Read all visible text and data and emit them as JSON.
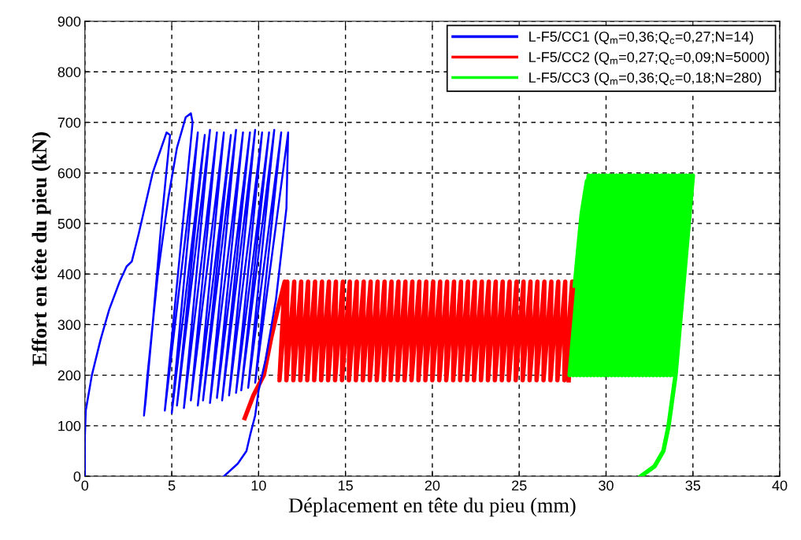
{
  "chart_data": {
    "type": "line",
    "xlabel": "Déplacement en tête du pieu (mm)",
    "ylabel": "Effort en tête du pieu (kN)",
    "xlim": [
      0,
      40
    ],
    "xticks": [
      0,
      5,
      10,
      15,
      20,
      25,
      30,
      35,
      40
    ],
    "ylim": [
      0,
      900
    ],
    "yticks": [
      0,
      100,
      200,
      300,
      400,
      500,
      600,
      700,
      800,
      900
    ],
    "grid": true,
    "legend": "top right",
    "line_style": "solid",
    "marker": "none",
    "series": [
      {
        "name": "L-F5/CC1 (Q$_{m}$=0,36;Q$_{c}$=0,27;N=14)",
        "color": "#0000ff",
        "x": [
          0,
          0,
          0.05,
          0.4,
          0.9,
          1.4,
          2.0,
          2.4,
          2.7,
          3.1,
          3.5,
          3.9,
          4.3,
          4.7,
          4.9,
          4.4,
          3.9,
          3.5,
          3.4,
          3.6,
          4.2,
          4.8,
          5.3,
          5.8,
          6.1,
          6.2,
          4.6,
          6.5,
          5.0,
          6.9,
          5.3,
          7.2,
          5.7,
          7.6,
          6.1,
          8.0,
          6.5,
          8.4,
          6.8,
          8.7,
          7.2,
          9.1,
          7.6,
          9.5,
          7.9,
          9.8,
          8.3,
          10.2,
          8.7,
          10.6,
          9.0,
          10.9,
          9.4,
          11.3,
          9.8,
          11.7,
          11.6,
          11.0,
          10.4,
          10.0,
          9.8,
          9.5,
          9.3,
          8.8,
          8.0
        ],
        "values": [
          0,
          80,
          130,
          200,
          270,
          330,
          385,
          415,
          425,
          480,
          540,
          600,
          640,
          680,
          675,
          500,
          300,
          150,
          120,
          200,
          400,
          550,
          650,
          710,
          718,
          700,
          130,
          680,
          125,
          675,
          140,
          685,
          135,
          680,
          150,
          680,
          140,
          675,
          150,
          685,
          145,
          680,
          155,
          680,
          150,
          685,
          160,
          680,
          165,
          680,
          170,
          685,
          175,
          680,
          185,
          680,
          530,
          350,
          230,
          170,
          120,
          80,
          50,
          25,
          0
        ]
      },
      {
        "name": "L-F5/CC2 (Q$_{m}$=0,27;Q$_{c}$=0,09;N=5000)",
        "color": "#ff0000",
        "x": [
          9.2,
          9.7,
          10.3,
          10.7,
          11.1,
          11.5,
          11.2,
          11.65,
          11.6,
          12.05,
          12.0,
          12.45,
          12.4,
          12.85,
          12.8,
          13.25,
          13.2,
          13.65,
          13.6,
          14.05,
          14.0,
          14.45,
          14.4,
          14.85,
          14.8,
          15.25,
          15.2,
          15.65,
          15.6,
          16.05,
          16.0,
          16.45,
          16.4,
          16.85,
          16.8,
          17.25,
          17.2,
          17.65,
          17.6,
          18.05,
          18.0,
          18.45,
          18.4,
          18.85,
          18.8,
          19.25,
          19.2,
          19.65,
          19.6,
          20.05,
          20.0,
          20.45,
          20.4,
          20.85,
          20.8,
          21.25,
          21.2,
          21.65,
          21.6,
          22.05,
          22.0,
          22.45,
          22.4,
          22.85,
          22.8,
          23.25,
          23.2,
          23.65,
          23.6,
          24.05,
          24.0,
          24.45,
          24.4,
          24.85,
          24.8,
          25.25,
          25.2,
          25.65,
          25.6,
          26.05,
          26.0,
          26.45,
          26.4,
          26.85,
          26.8,
          27.25,
          27.2,
          27.65,
          27.6,
          28.05,
          28.2,
          27.85
        ],
        "values": [
          115,
          160,
          200,
          270,
          330,
          385,
          190,
          385,
          190,
          385,
          190,
          385,
          190,
          385,
          190,
          385,
          190,
          385,
          190,
          385,
          190,
          385,
          190,
          385,
          190,
          385,
          190,
          385,
          190,
          385,
          190,
          385,
          190,
          385,
          190,
          385,
          190,
          385,
          190,
          385,
          190,
          385,
          190,
          385,
          190,
          385,
          190,
          385,
          190,
          385,
          190,
          385,
          190,
          385,
          190,
          385,
          190,
          385,
          190,
          385,
          190,
          385,
          190,
          385,
          190,
          385,
          190,
          385,
          190,
          385,
          190,
          385,
          190,
          385,
          190,
          385,
          190,
          385,
          190,
          385,
          190,
          385,
          190,
          385,
          190,
          385,
          190,
          385,
          190,
          385,
          385,
          190
        ]
      },
      {
        "name": "L-F5/CC3 (Q$_{m}$=0,36;Q$_{c}$=0,18;N=280)",
        "color": "#00ff00",
        "x": [
          28.2,
          28.4,
          28.6,
          28.9,
          27.9,
          29.0,
          28.1,
          29.2,
          28.3,
          29.4,
          28.5,
          29.6,
          28.7,
          29.8,
          28.9,
          30.0,
          29.1,
          30.2,
          29.3,
          30.4,
          29.5,
          30.6,
          29.7,
          30.8,
          29.9,
          31.0,
          30.1,
          31.2,
          30.3,
          31.4,
          30.5,
          31.6,
          30.7,
          31.8,
          30.9,
          32.0,
          31.1,
          32.2,
          31.3,
          32.4,
          31.5,
          32.6,
          31.7,
          32.8,
          31.9,
          33.0,
          32.1,
          33.2,
          32.3,
          33.4,
          32.5,
          33.6,
          32.7,
          33.8,
          32.9,
          34.0,
          33.1,
          34.2,
          33.3,
          34.4,
          33.5,
          34.6,
          33.7,
          34.8,
          33.9,
          35.0,
          34.0,
          33.8,
          33.6,
          33.3,
          32.8,
          32.0
        ],
        "values": [
          377,
          450,
          520,
          584,
          200,
          595,
          200,
          595,
          200,
          595,
          200,
          595,
          200,
          595,
          200,
          595,
          200,
          595,
          200,
          595,
          200,
          595,
          200,
          595,
          200,
          595,
          200,
          595,
          200,
          595,
          200,
          595,
          200,
          595,
          200,
          595,
          200,
          595,
          200,
          595,
          200,
          595,
          200,
          595,
          200,
          595,
          200,
          595,
          200,
          595,
          200,
          595,
          200,
          595,
          200,
          595,
          200,
          595,
          200,
          595,
          200,
          595,
          200,
          595,
          200,
          595,
          200,
          150,
          100,
          50,
          20,
          0
        ]
      }
    ]
  }
}
